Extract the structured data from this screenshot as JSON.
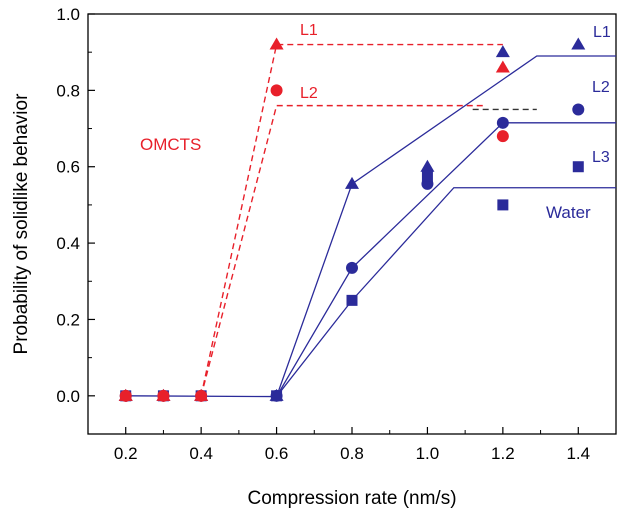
{
  "chart_data": {
    "type": "scatter",
    "xlabel": "Compression rate (nm/s)",
    "ylabel": "Probability of solidlike behavior",
    "xlim": [
      0.1,
      1.5
    ],
    "ylim": [
      -0.1,
      1.0
    ],
    "xticks": [
      "0.2",
      "0.4",
      "0.6",
      "0.8",
      "1.0",
      "1.2",
      "1.4"
    ],
    "xtick_values": [
      0.2,
      0.4,
      0.6,
      0.8,
      1.0,
      1.2,
      1.4
    ],
    "yticks": [
      "0.0",
      "0.2",
      "0.4",
      "0.6",
      "0.8",
      "1.0"
    ],
    "ytick_values": [
      0.0,
      0.2,
      0.4,
      0.6,
      0.8,
      1.0
    ],
    "colors": {
      "water": "#2b2b9a",
      "omcts": "#e8202a",
      "dashed_black": "#333333"
    },
    "annotations": {
      "omcts": "OMCTS",
      "water": "Water",
      "red_l1": "L1",
      "red_l2": "L2",
      "blue_l1": "L1",
      "blue_l2": "L2",
      "blue_l3": "L3"
    },
    "series": [
      {
        "name": "Water L1",
        "group": "water",
        "marker": "triangle",
        "points": [
          [
            0.2,
            0.0
          ],
          [
            0.3,
            0.0
          ],
          [
            0.4,
            0.0
          ],
          [
            0.6,
            0.0
          ],
          [
            0.8,
            0.555
          ],
          [
            1.0,
            0.6
          ],
          [
            1.2,
            0.9
          ],
          [
            1.4,
            0.92
          ]
        ]
      },
      {
        "name": "Water L2",
        "group": "water",
        "marker": "circle",
        "points": [
          [
            0.2,
            0.0
          ],
          [
            0.3,
            0.0
          ],
          [
            0.4,
            0.0
          ],
          [
            0.6,
            0.0
          ],
          [
            0.8,
            0.335
          ],
          [
            1.0,
            0.555
          ],
          [
            1.2,
            0.715
          ],
          [
            1.4,
            0.75
          ]
        ]
      },
      {
        "name": "Water L3",
        "group": "water",
        "marker": "square",
        "points": [
          [
            0.2,
            0.0
          ],
          [
            0.3,
            0.0
          ],
          [
            0.4,
            0.0
          ],
          [
            0.6,
            0.0
          ],
          [
            0.8,
            0.25
          ],
          [
            1.0,
            0.575
          ],
          [
            1.2,
            0.5
          ],
          [
            1.4,
            0.6
          ]
        ]
      },
      {
        "name": "OMCTS L1",
        "group": "omcts",
        "marker": "triangle",
        "points": [
          [
            0.2,
            0.0
          ],
          [
            0.3,
            0.0
          ],
          [
            0.4,
            0.0
          ],
          [
            0.6,
            0.92
          ],
          [
            1.2,
            0.86
          ]
        ]
      },
      {
        "name": "OMCTS L2",
        "group": "omcts",
        "marker": "circle",
        "points": [
          [
            0.2,
            0.0
          ],
          [
            0.3,
            0.0
          ],
          [
            0.4,
            0.0
          ],
          [
            0.6,
            0.8
          ],
          [
            1.2,
            0.68
          ]
        ]
      }
    ],
    "fit_lines": [
      {
        "name": "Water L1 fit",
        "group": "water",
        "style": "solid",
        "points": [
          [
            0.2,
            0.0
          ],
          [
            0.6,
            -0.002
          ],
          [
            0.8,
            0.555
          ],
          [
            1.29,
            0.89
          ],
          [
            1.5,
            0.89
          ]
        ]
      },
      {
        "name": "Water L2 fit",
        "group": "water",
        "style": "solid",
        "points": [
          [
            0.6,
            -0.002
          ],
          [
            0.8,
            0.335
          ],
          [
            1.2,
            0.715
          ],
          [
            1.5,
            0.715
          ]
        ]
      },
      {
        "name": "Water L3 fit",
        "group": "water",
        "style": "solid",
        "points": [
          [
            0.6,
            -0.002
          ],
          [
            0.8,
            0.25
          ],
          [
            1.07,
            0.545
          ],
          [
            1.5,
            0.545
          ]
        ]
      },
      {
        "name": "OMCTS L1 fit",
        "group": "omcts",
        "style": "dashed",
        "points": [
          [
            0.4,
            0.0
          ],
          [
            0.6,
            0.92
          ],
          [
            1.2,
            0.92
          ]
        ]
      },
      {
        "name": "OMCTS L2 fit",
        "group": "omcts",
        "style": "dashed",
        "points": [
          [
            0.4,
            0.0
          ],
          [
            0.6,
            0.76
          ],
          [
            1.15,
            0.76
          ]
        ]
      },
      {
        "name": "reference dash",
        "group": "dashed_black",
        "style": "dashed",
        "points": [
          [
            1.12,
            0.75
          ],
          [
            1.29,
            0.75
          ]
        ]
      }
    ]
  }
}
